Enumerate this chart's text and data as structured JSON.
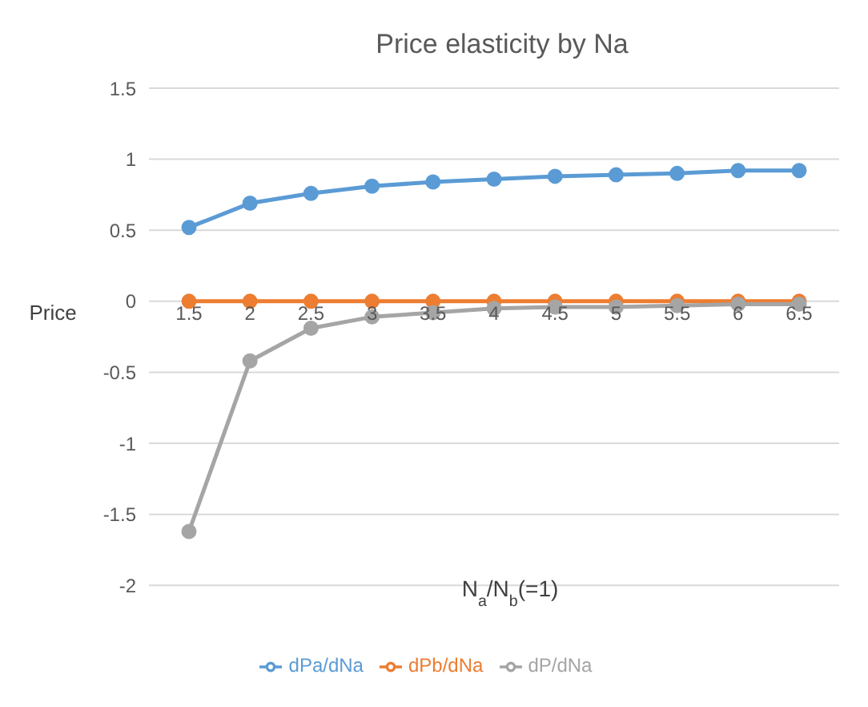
{
  "chart_data": {
    "type": "line",
    "title": "Price elasticity by Na",
    "xlabel": "N$_{a}$/N$_{b}$(=1)",
    "ylabel": "Price",
    "categories": [
      "1.5",
      "2",
      "2.5",
      "3",
      "3.5",
      "4",
      "4.5",
      "5",
      "5.5",
      "6",
      "6.5"
    ],
    "series": [
      {
        "name": "dPa/dNa",
        "color": "#5b9bd5",
        "values": [
          0.52,
          0.69,
          0.76,
          0.81,
          0.84,
          0.86,
          0.88,
          0.89,
          0.9,
          0.92,
          0.92
        ]
      },
      {
        "name": "dPb/dNa",
        "color": "#ed7d31",
        "values": [
          0,
          0,
          0,
          0,
          0,
          0,
          0,
          0,
          0,
          0,
          0
        ]
      },
      {
        "name": "dP/dNa",
        "color": "#a5a5a5",
        "values": [
          -1.62,
          -0.42,
          -0.19,
          -0.11,
          -0.08,
          -0.05,
          -0.04,
          -0.04,
          -0.03,
          -0.02,
          -0.02
        ]
      }
    ],
    "ylim": [
      -2,
      1.5
    ],
    "yticks": [
      -2,
      -1.5,
      -1,
      -0.5,
      0,
      0.5,
      1,
      1.5
    ],
    "grid": "y",
    "legend": "bottom",
    "marker": "circle",
    "line_style": "solid"
  }
}
